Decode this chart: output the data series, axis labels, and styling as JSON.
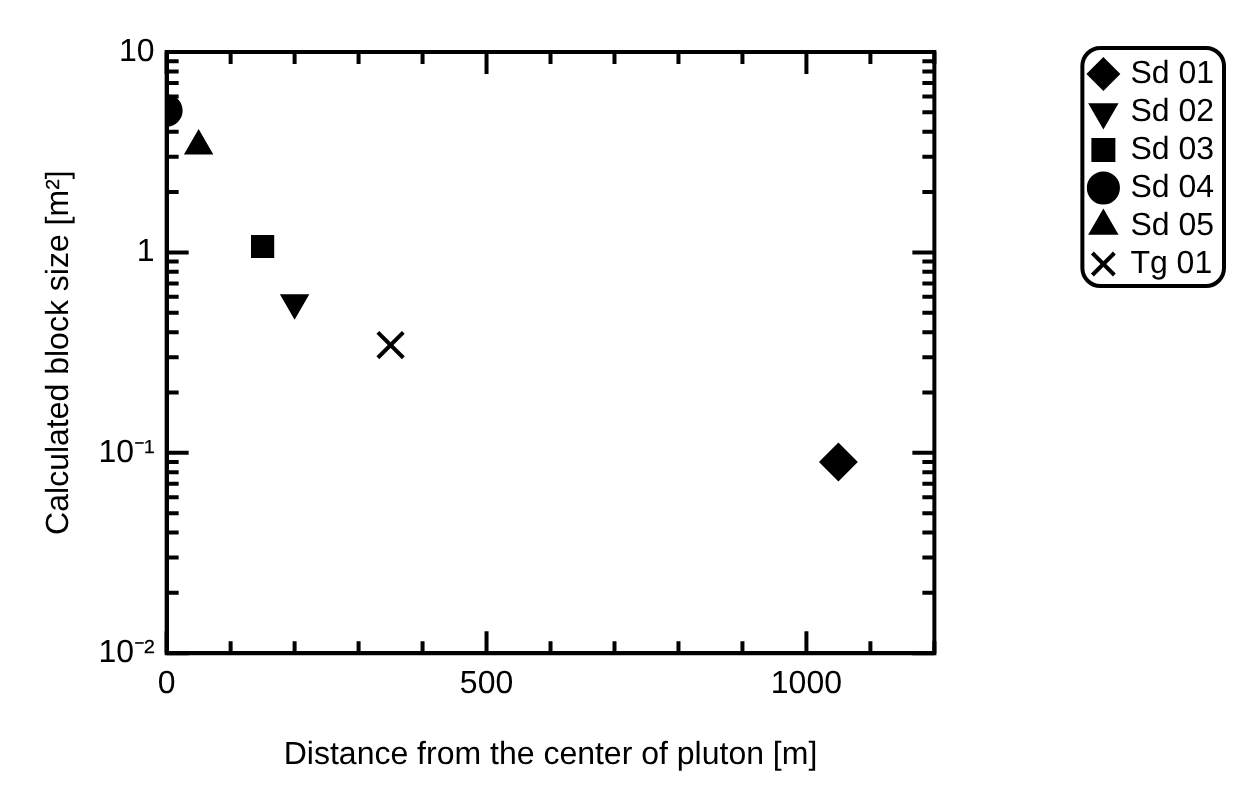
{
  "chart_data": {
    "type": "scatter",
    "xlabel": "Distance from the center of pluton [m]",
    "ylabel": "Calculated block size [m²]",
    "log": "y",
    "xlim": [
      0,
      1200
    ],
    "ylim": [
      0.01,
      10
    ],
    "xticks": [
      0,
      {
        "value": 100,
        "label": null
      },
      {
        "value": 200,
        "label": null
      },
      {
        "value": 300,
        "label": null
      },
      {
        "value": 400,
        "label": null
      },
      500,
      {
        "value": 600,
        "label": null
      },
      {
        "value": 700,
        "label": null
      },
      {
        "value": 800,
        "label": null
      },
      {
        "value": 900,
        "label": null
      },
      1000,
      {
        "value": 1100,
        "label": null
      },
      {
        "value": 1200,
        "label": null
      }
    ],
    "yticks": [
      {
        "value": 0.01,
        "label": "10⁻²"
      },
      {
        "value": 0.02,
        "label": null
      },
      {
        "value": 0.03,
        "label": null
      },
      {
        "value": 0.04,
        "label": null
      },
      {
        "value": 0.05,
        "label": null
      },
      {
        "value": 0.06,
        "label": null
      },
      {
        "value": 0.07,
        "label": null
      },
      {
        "value": 0.08,
        "label": null
      },
      {
        "value": 0.09,
        "label": null
      },
      {
        "value": 0.1,
        "label": "10⁻¹"
      },
      {
        "value": 0.2,
        "label": null
      },
      {
        "value": 0.3,
        "label": null
      },
      {
        "value": 0.4,
        "label": null
      },
      {
        "value": 0.5,
        "label": null
      },
      {
        "value": 0.6,
        "label": null
      },
      {
        "value": 0.7,
        "label": null
      },
      {
        "value": 0.8,
        "label": null
      },
      {
        "value": 0.9,
        "label": null
      },
      1,
      {
        "value": 2,
        "label": null
      },
      {
        "value": 3,
        "label": null
      },
      {
        "value": 4,
        "label": null
      },
      {
        "value": 5,
        "label": null
      },
      {
        "value": 6,
        "label": null
      },
      {
        "value": 7,
        "label": null
      },
      {
        "value": 8,
        "label": null
      },
      {
        "value": 9,
        "label": null
      },
      10
    ],
    "grid": false,
    "legend": "right",
    "series": [
      {
        "name": "Sd 01",
        "color": "#000000",
        "marker": "diamond",
        "x": [
          1050
        ],
        "values": [
          0.09
        ]
      },
      {
        "name": "Sd 02",
        "color": "#000000",
        "marker": "triangle-down",
        "x": [
          200
        ],
        "values": [
          0.56
        ]
      },
      {
        "name": "Sd 03",
        "color": "#000000",
        "marker": "square",
        "x": [
          150
        ],
        "values": [
          1.07
        ]
      },
      {
        "name": "Sd 04",
        "color": "#000000",
        "marker": "circle",
        "x": [
          0
        ],
        "values": [
          5.1
        ]
      },
      {
        "name": "Sd 05",
        "color": "#000000",
        "marker": "triangle",
        "x": [
          50
        ],
        "values": [
          3.4
        ]
      },
      {
        "name": "Tg 01",
        "color": "#000000",
        "marker": "cross",
        "x": [
          350
        ],
        "values": [
          0.345
        ]
      }
    ]
  }
}
